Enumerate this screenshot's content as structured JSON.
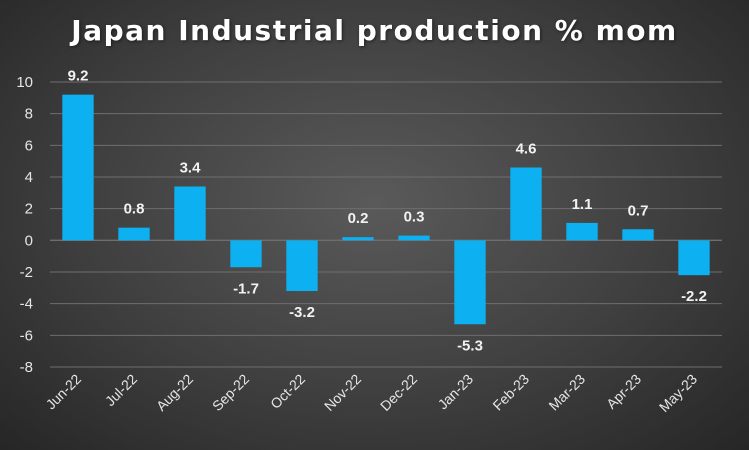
{
  "chart_data": {
    "type": "bar",
    "title": "Japan Industrial production % mom",
    "xlabel": "",
    "ylabel": "",
    "categories": [
      "Jun-22",
      "Jul-22",
      "Aug-22",
      "Sep-22",
      "Oct-22",
      "Nov-22",
      "Dec-22",
      "Jan-23",
      "Feb-23",
      "Mar-23",
      "Apr-23",
      "May-23"
    ],
    "values": [
      9.2,
      0.8,
      3.4,
      -1.7,
      -3.2,
      0.2,
      0.3,
      -5.3,
      4.6,
      1.1,
      0.7,
      -2.2
    ],
    "ylim": [
      -8,
      10
    ],
    "yticks": [
      10,
      8,
      6,
      4,
      2,
      0,
      -2,
      -4,
      -6,
      -8
    ],
    "grid": true,
    "data_labels": true,
    "colors": {
      "bar": "#0DB0F0",
      "grid": "#6e6e6e",
      "background_center": "#5a5a5a",
      "background_edge": "#262626",
      "text": "#ffffff"
    }
  }
}
